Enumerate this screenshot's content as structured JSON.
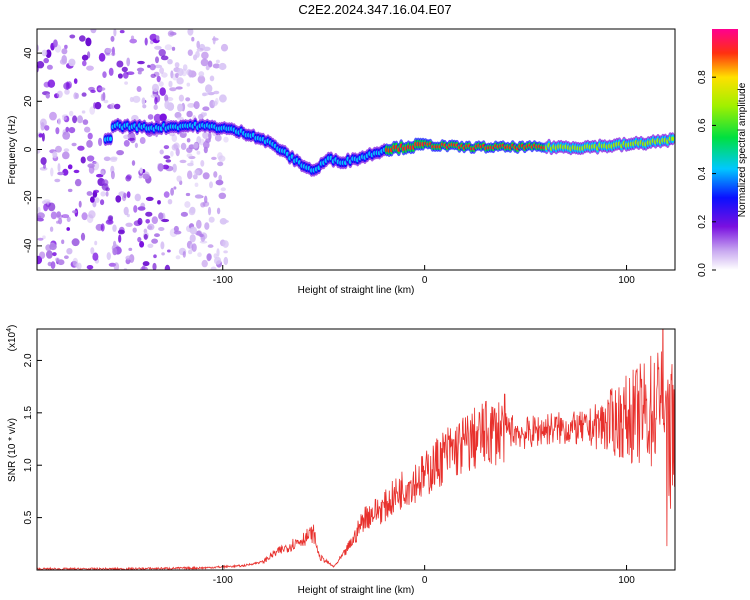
{
  "title": "C2E2.2024.347.16.04.E07",
  "chart_data": [
    {
      "type": "heatmap",
      "xlabel": "Height of straight line (km)",
      "ylabel": "Frequency (Hz)",
      "xlim": [
        -192,
        124
      ],
      "ylim": [
        -50,
        50
      ],
      "xticks": [
        "-100",
        "0",
        "100"
      ],
      "yticks": [
        "40",
        "20",
        "0",
        "-20",
        "-40"
      ],
      "ridge": [
        {
          "x": -155,
          "y": 10
        },
        {
          "x": -135,
          "y": 9
        },
        {
          "x": -115,
          "y": 10
        },
        {
          "x": -100,
          "y": 9
        },
        {
          "x": -85,
          "y": 6
        },
        {
          "x": -75,
          "y": 2
        },
        {
          "x": -65,
          "y": -4
        },
        {
          "x": -55,
          "y": -9
        },
        {
          "x": -48,
          "y": -4
        },
        {
          "x": -40,
          "y": -5
        },
        {
          "x": -30,
          "y": -3
        },
        {
          "x": -20,
          "y": 0
        },
        {
          "x": -10,
          "y": 1
        },
        {
          "x": 0,
          "y": 2
        },
        {
          "x": 20,
          "y": 1
        },
        {
          "x": 50,
          "y": 1
        },
        {
          "x": 80,
          "y": 1
        },
        {
          "x": 100,
          "y": 2
        },
        {
          "x": 124,
          "y": 4
        }
      ],
      "noise_region_x": [
        -192,
        -98
      ],
      "colorbar": {
        "label": "Normalized spectral amplitude",
        "range": [
          0,
          1
        ],
        "ticks": [
          "0.0",
          "0.2",
          "0.4",
          "0.6",
          "0.8"
        ]
      }
    },
    {
      "type": "line",
      "xlabel": "Height of straight line (km)",
      "ylabel": "SNR (10 * v/v)",
      "multiplier_base": "x10",
      "multiplier_exp": "4",
      "xlim": [
        -192,
        124
      ],
      "ylim": [
        0,
        2.3
      ],
      "xticks": [
        "-100",
        "0",
        "100"
      ],
      "yticks": [
        "0.5",
        "1.0",
        "1.5",
        "2.0"
      ],
      "color": "#e8302c",
      "series": [
        {
          "x": [
            -192,
            -150,
            -110,
            -90,
            -80,
            -75,
            -70,
            -65,
            -60,
            -55,
            -52,
            -50,
            -45,
            -40,
            -35,
            -30,
            -25,
            -20,
            -15,
            -10,
            -5,
            0,
            5,
            10,
            20,
            30,
            40,
            50,
            60,
            70,
            80,
            90,
            100,
            110,
            115,
            118,
            120,
            122,
            124
          ],
          "y": [
            0.01,
            0.01,
            0.02,
            0.04,
            0.08,
            0.15,
            0.2,
            0.25,
            0.3,
            0.35,
            0.12,
            0.1,
            0.03,
            0.15,
            0.3,
            0.5,
            0.55,
            0.6,
            0.7,
            0.8,
            0.85,
            0.9,
            1.0,
            1.1,
            1.2,
            1.3,
            1.35,
            1.3,
            1.35,
            1.35,
            1.35,
            1.4,
            1.45,
            1.5,
            1.55,
            1.6,
            1.0,
            1.3,
            1.5
          ]
        }
      ]
    }
  ]
}
